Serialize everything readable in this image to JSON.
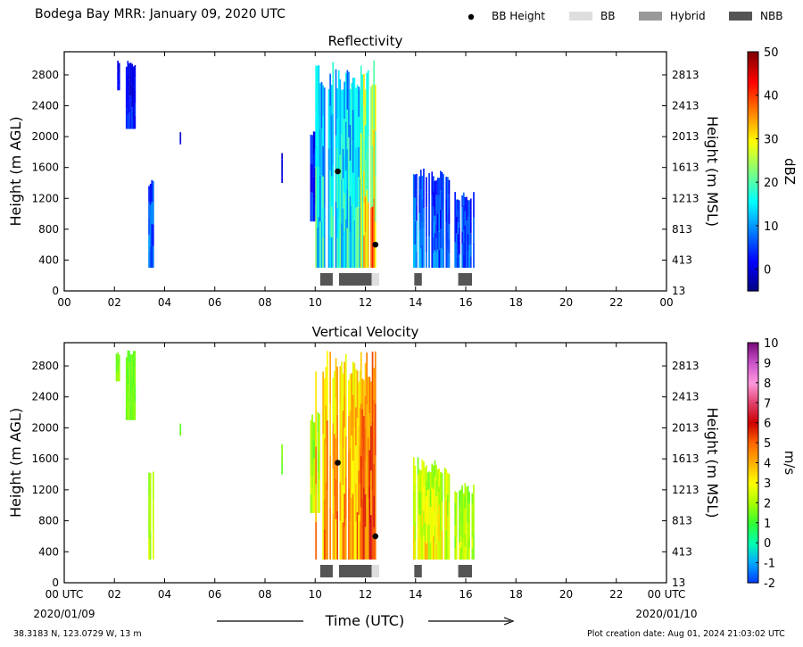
{
  "header": {
    "title": "Bodega Bay MRR:  January 09, 2020 UTC",
    "legend": [
      {
        "label": "BB Height",
        "kind": "dot",
        "color": "#000000"
      },
      {
        "label": "BB",
        "kind": "swatch",
        "color": "#dedede"
      },
      {
        "label": "Hybrid",
        "kind": "swatch",
        "color": "#999999"
      },
      {
        "label": "NBB",
        "kind": "swatch",
        "color": "#555555"
      }
    ]
  },
  "footer": {
    "left": "38.3183 N, 123.0729 W, 13 m",
    "right": "Plot creation date: Aug 01, 2024 21:03:02 UTC",
    "xlabel": "Time (UTC)",
    "start_date": "2020/01/09",
    "end_date": "2020/01/10"
  },
  "chart_data": [
    {
      "type": "heatmap",
      "title": "Reflectivity",
      "xlabel": "",
      "ylabel": "Height (m AGL)",
      "ylabel_right": "Height (m MSL)",
      "xlim": [
        0,
        24
      ],
      "ylim": [
        0,
        3100
      ],
      "x_ticks": [
        "00",
        "02",
        "04",
        "06",
        "08",
        "10",
        "12",
        "14",
        "16",
        "18",
        "20",
        "22",
        "00"
      ],
      "y_ticks": [
        0,
        400,
        800,
        1200,
        1600,
        2000,
        2400,
        2800
      ],
      "y_ticks_right": [
        "13",
        "413",
        "813",
        "1213",
        "1613",
        "2013",
        "2413",
        "2813"
      ],
      "colorbar": {
        "label": "dBZ",
        "min": -5,
        "max": 50,
        "ticks": [
          0,
          10,
          20,
          30,
          40,
          50
        ],
        "colors": [
          "#00007f",
          "#0000ff",
          "#007fff",
          "#00ffff",
          "#7fff7f",
          "#ffff00",
          "#ff7f00",
          "#ff0000",
          "#7f0000"
        ]
      },
      "bb_height": [
        {
          "time": 10.9,
          "height": 1550
        },
        {
          "time": 12.4,
          "height": 600
        }
      ],
      "bb_flags": [
        {
          "start": 10.2,
          "end": 10.7,
          "kind": "NBB"
        },
        {
          "start": 10.95,
          "end": 12.25,
          "kind": "NBB"
        },
        {
          "start": 12.25,
          "end": 12.55,
          "kind": "BB"
        },
        {
          "start": 13.95,
          "end": 14.25,
          "kind": "NBB"
        },
        {
          "start": 15.7,
          "end": 16.25,
          "kind": "NBB"
        }
      ],
      "echo_regions": [
        {
          "start": 2.05,
          "end": 2.2,
          "bottom": 2600,
          "top": 3000,
          "low": -2,
          "high": 4
        },
        {
          "start": 2.45,
          "end": 2.8,
          "bottom": 2100,
          "top": 3000,
          "low": -3,
          "high": 6
        },
        {
          "start": 3.35,
          "end": 3.55,
          "bottom": 300,
          "top": 1450,
          "low": 0,
          "high": 12
        },
        {
          "start": 4.6,
          "end": 4.65,
          "bottom": 1900,
          "top": 2080,
          "low": -2,
          "high": 2
        },
        {
          "start": 8.65,
          "end": 8.7,
          "bottom": 1400,
          "top": 1800,
          "low": -2,
          "high": 2
        },
        {
          "start": 9.8,
          "end": 10.15,
          "bottom": 900,
          "top": 2200,
          "low": -2,
          "high": 8
        },
        {
          "start": 10.0,
          "end": 11.8,
          "bottom": 300,
          "top": 3000,
          "low": 3,
          "high": 24
        },
        {
          "start": 11.8,
          "end": 12.4,
          "bottom": 300,
          "top": 3000,
          "low": 10,
          "high": 42
        },
        {
          "start": 13.9,
          "end": 14.4,
          "bottom": 300,
          "top": 1650,
          "low": 0,
          "high": 14
        },
        {
          "start": 14.4,
          "end": 15.35,
          "bottom": 300,
          "top": 1600,
          "low": -1,
          "high": 12
        },
        {
          "start": 15.55,
          "end": 16.3,
          "bottom": 300,
          "top": 1300,
          "low": -1,
          "high": 12
        }
      ]
    },
    {
      "type": "heatmap",
      "title": "Vertical Velocity",
      "xlabel": "",
      "ylabel": "Height (m AGL)",
      "ylabel_right": "Height (m MSL)",
      "xlim": [
        0,
        24
      ],
      "ylim": [
        0,
        3100
      ],
      "x_ticks": [
        "00 UTC",
        "02",
        "04",
        "06",
        "08",
        "10",
        "12",
        "14",
        "16",
        "18",
        "20",
        "22",
        "00 UTC"
      ],
      "y_ticks": [
        0,
        400,
        800,
        1200,
        1600,
        2000,
        2400,
        2800
      ],
      "y_ticks_right": [
        "13",
        "413",
        "813",
        "1213",
        "1613",
        "2013",
        "2413",
        "2813"
      ],
      "colorbar": {
        "label": "m/s",
        "min": -2,
        "max": 10,
        "ticks": [
          -2,
          -1,
          0,
          1,
          2,
          3,
          4,
          5,
          6,
          7,
          8,
          9,
          10
        ],
        "colors": [
          "#0039ff",
          "#00a8ff",
          "#00ffb0",
          "#33ff33",
          "#a8ff00",
          "#ffff00",
          "#ffb000",
          "#ff6600",
          "#cc0000",
          "#e0406a",
          "#ff99dd",
          "#cc55cc",
          "#7a0a7a"
        ]
      },
      "bb_height": [
        {
          "time": 10.9,
          "height": 1550
        },
        {
          "time": 12.4,
          "height": 600
        }
      ],
      "bb_flags": [
        {
          "start": 10.2,
          "end": 10.7,
          "kind": "NBB"
        },
        {
          "start": 10.95,
          "end": 12.25,
          "kind": "NBB"
        },
        {
          "start": 12.25,
          "end": 12.55,
          "kind": "BB"
        },
        {
          "start": 13.95,
          "end": 14.25,
          "kind": "NBB"
        },
        {
          "start": 15.7,
          "end": 16.25,
          "kind": "NBB"
        }
      ],
      "echo_regions": [
        {
          "start": 2.05,
          "end": 2.2,
          "bottom": 2600,
          "top": 3000,
          "low": 1,
          "high": 2
        },
        {
          "start": 2.45,
          "end": 2.8,
          "bottom": 2100,
          "top": 3000,
          "low": 1,
          "high": 2
        },
        {
          "start": 3.35,
          "end": 3.55,
          "bottom": 300,
          "top": 1450,
          "low": 1,
          "high": 3
        },
        {
          "start": 4.6,
          "end": 4.65,
          "bottom": 1900,
          "top": 2080,
          "low": 1,
          "high": 2
        },
        {
          "start": 8.65,
          "end": 8.7,
          "bottom": 1400,
          "top": 1800,
          "low": 1,
          "high": 2
        },
        {
          "start": 9.8,
          "end": 10.15,
          "bottom": 900,
          "top": 2200,
          "low": 1,
          "high": 3
        },
        {
          "start": 10.0,
          "end": 11.8,
          "bottom": 300,
          "top": 3000,
          "low": 2,
          "high": 5.5
        },
        {
          "start": 11.8,
          "end": 12.4,
          "bottom": 300,
          "top": 3000,
          "low": 3,
          "high": 6.5
        },
        {
          "start": 13.9,
          "end": 14.4,
          "bottom": 300,
          "top": 1650,
          "low": 1,
          "high": 4
        },
        {
          "start": 14.4,
          "end": 15.35,
          "bottom": 300,
          "top": 1600,
          "low": 1,
          "high": 4
        },
        {
          "start": 15.55,
          "end": 16.3,
          "bottom": 300,
          "top": 1300,
          "low": 1,
          "high": 3
        }
      ]
    }
  ]
}
